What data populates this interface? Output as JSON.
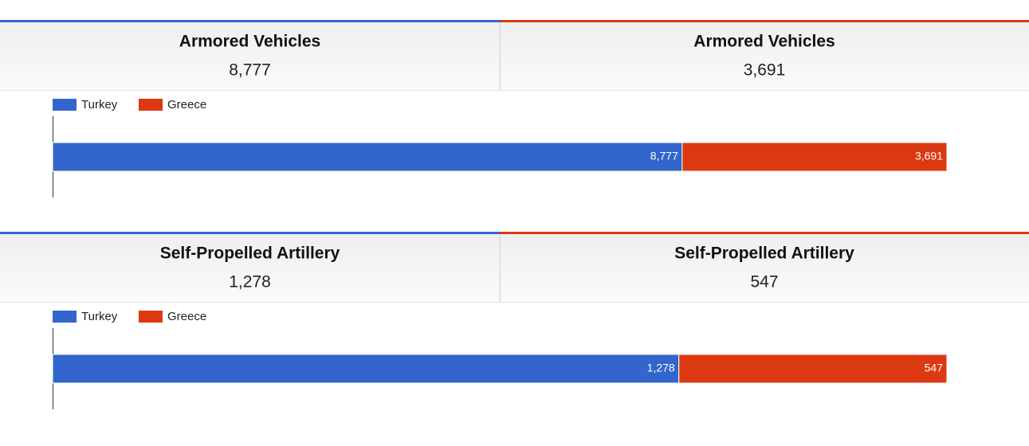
{
  "sections": [
    {
      "left": {
        "title": "Armored Vehicles",
        "value": "8,777"
      },
      "right": {
        "title": "Armored Vehicles",
        "value": "3,691"
      }
    },
    {
      "left": {
        "title": "Self-Propelled Artillery",
        "value": "1,278"
      },
      "right": {
        "title": "Self-Propelled Artillery",
        "value": "547"
      }
    }
  ],
  "chart_data": [
    {
      "type": "bar",
      "orientation": "horizontal",
      "stacking": "percent",
      "categories": [
        null
      ],
      "series": [
        {
          "name": "Turkey",
          "color": "#3366cc",
          "values": [
            8777
          ],
          "value_labels": [
            "8,777"
          ]
        },
        {
          "name": "Greece",
          "color": "#dc3912",
          "values": [
            3691
          ],
          "value_labels": [
            "3,691"
          ]
        }
      ]
    },
    {
      "type": "bar",
      "orientation": "horizontal",
      "stacking": "percent",
      "categories": [
        null
      ],
      "series": [
        {
          "name": "Turkey",
          "color": "#3366cc",
          "values": [
            1278
          ],
          "value_labels": [
            "1,278"
          ]
        },
        {
          "name": "Greece",
          "color": "#dc3912",
          "values": [
            547
          ],
          "value_labels": [
            "547"
          ]
        }
      ]
    }
  ]
}
